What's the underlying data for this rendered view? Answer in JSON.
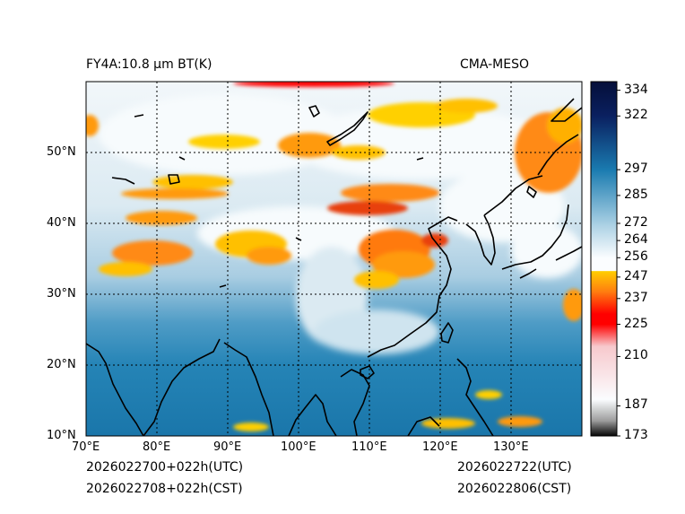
{
  "header": {
    "left_title": "FY4A:10.8 µm BT(K)",
    "right_title": "CMA-MESO"
  },
  "footer": {
    "init_utc": "2026022700+022h(UTC)",
    "init_cst": "2026022708+022h(CST)",
    "valid_utc": "2026022722(UTC)",
    "valid_cst": "2026022806(CST)"
  },
  "map": {
    "lon_range": [
      70,
      140
    ],
    "lat_range": [
      10,
      60
    ],
    "lon_ticks": [
      "70°E",
      "80°E",
      "90°E",
      "100°E",
      "110°E",
      "120°E",
      "130°E"
    ],
    "lat_ticks": [
      "10°N",
      "20°N",
      "30°N",
      "40°N",
      "50°N"
    ],
    "gridlines": "dotted",
    "coastlines": "black"
  },
  "colorbar": {
    "vmin": 173,
    "vmax": 338,
    "labels": [
      "334",
      "322",
      "297",
      "285",
      "272",
      "264",
      "256",
      "247",
      "237",
      "225",
      "210",
      "187",
      "173"
    ],
    "label_values": [
      334,
      322,
      297,
      285,
      272,
      264,
      256,
      247,
      237,
      225,
      210,
      187,
      173
    ],
    "colors": {
      "cold_black": "#000000",
      "gray": "#9a9a9a",
      "pink": "#f7c8cc",
      "red": "#ff0000",
      "orange": "#ff7a10",
      "yellow": "#ffd000",
      "white": "#fbfdff",
      "light_blue": "#a8cfe3",
      "steel_blue": "#1a7bb0",
      "navy": "#0a2060",
      "dark_navy": "#050f3a"
    }
  }
}
